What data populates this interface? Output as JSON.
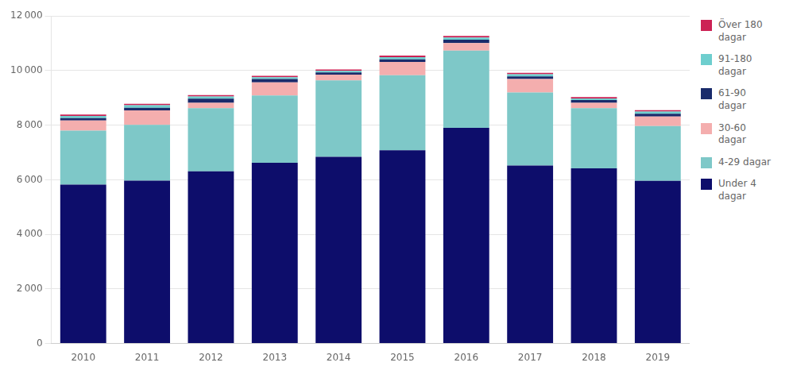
{
  "chart_data": {
    "type": "bar",
    "stacked": true,
    "categories": [
      "2010",
      "2011",
      "2012",
      "2013",
      "2014",
      "2015",
      "2016",
      "2017",
      "2018",
      "2019"
    ],
    "series": [
      {
        "name": "Under 4\ndagar",
        "color": "#0D0D6B",
        "values": [
          5820,
          5970,
          6310,
          6620,
          6840,
          7080,
          7900,
          6520,
          6420,
          5960
        ]
      },
      {
        "name": "4-29 dagar",
        "color": "#7EC8C8",
        "values": [
          1980,
          2040,
          2310,
          2470,
          2800,
          2750,
          2830,
          2680,
          2200,
          2010
        ]
      },
      {
        "name": "30-60\ndagar",
        "color": "#F4AEAE",
        "values": [
          370,
          530,
          200,
          480,
          210,
          490,
          280,
          490,
          200,
          350
        ]
      },
      {
        "name": "61-90\ndagar",
        "color": "#1A2B6B",
        "values": [
          90,
          100,
          150,
          120,
          80,
          90,
          120,
          100,
          100,
          100
        ]
      },
      {
        "name": "91-180\ndagar",
        "color": "#6ECECE",
        "values": [
          80,
          90,
          80,
          70,
          60,
          80,
          80,
          80,
          60,
          80
        ]
      },
      {
        "name": "Över 180\ndagar",
        "color": "#CC2255",
        "values": [
          50,
          50,
          50,
          50,
          50,
          60,
          60,
          50,
          50,
          50
        ]
      }
    ],
    "ylim": [
      0,
      12000
    ],
    "yticks": [
      0,
      {
        "value": 2000,
        "label": "2 000"
      },
      {
        "value": 4000,
        "label": "4 000"
      },
      {
        "value": 6000,
        "label": "6 000"
      },
      {
        "value": 8000,
        "label": "8 000"
      },
      {
        "value": 10000,
        "label": "10 000"
      },
      {
        "value": 12000,
        "label": "12 000"
      }
    ],
    "grid": true,
    "legend": "right"
  }
}
